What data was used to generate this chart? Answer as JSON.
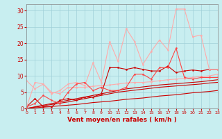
{
  "x": [
    0,
    1,
    2,
    3,
    4,
    5,
    6,
    7,
    8,
    9,
    10,
    11,
    12,
    13,
    14,
    15,
    16,
    17,
    18,
    19,
    20,
    21,
    22,
    23
  ],
  "series": [
    {
      "y": [
        0,
        0.2,
        0.4,
        0.6,
        0.8,
        1.0,
        1.2,
        1.5,
        1.8,
        2.0,
        2.2,
        2.5,
        2.8,
        3.0,
        3.2,
        3.5,
        3.8,
        4.0,
        4.2,
        4.5,
        4.8,
        5.0,
        5.2,
        5.5
      ],
      "color": "#cc0000",
      "lw": 0.8,
      "marker": null
    },
    {
      "y": [
        0,
        0.4,
        0.8,
        1.2,
        1.6,
        2.0,
        2.5,
        3.0,
        3.5,
        4.0,
        4.5,
        5.0,
        5.3,
        5.6,
        5.9,
        6.2,
        6.5,
        6.7,
        6.9,
        7.1,
        7.3,
        7.5,
        7.8,
        8.0
      ],
      "color": "#cc0000",
      "lw": 0.8,
      "marker": null
    },
    {
      "y": [
        0,
        0.5,
        1.0,
        1.5,
        2.0,
        2.5,
        3.0,
        3.5,
        4.0,
        4.5,
        5.0,
        5.5,
        6.0,
        6.3,
        6.6,
        6.9,
        7.2,
        7.4,
        7.6,
        7.8,
        8.0,
        8.2,
        8.5,
        8.8
      ],
      "color": "#cc0000",
      "lw": 0.8,
      "marker": null
    },
    {
      "y": [
        8.5,
        6.0,
        7.5,
        5.0,
        4.5,
        6.5,
        6.5,
        6.5,
        6.8,
        7.0,
        7.2,
        7.5,
        7.8,
        8.0,
        8.0,
        8.2,
        8.5,
        8.8,
        9.0,
        9.2,
        9.5,
        9.8,
        10.0,
        10.5
      ],
      "color": "#ffaaaa",
      "lw": 0.8,
      "marker": "o",
      "ms": 1.5
    },
    {
      "y": [
        0.5,
        3.0,
        0.5,
        0.5,
        2.5,
        3.0,
        2.5,
        3.5,
        3.5,
        4.5,
        12.5,
        12.5,
        12.0,
        12.5,
        12.0,
        11.5,
        11.5,
        13.0,
        11.0,
        11.5,
        11.8,
        11.5,
        12.0,
        12.0
      ],
      "color": "#cc0000",
      "lw": 0.8,
      "marker": "o",
      "ms": 1.5
    },
    {
      "y": [
        0.5,
        8.0,
        7.5,
        4.5,
        5.5,
        7.5,
        8.0,
        7.0,
        14.0,
        8.0,
        20.5,
        14.5,
        24.5,
        20.5,
        13.5,
        17.5,
        21.0,
        18.0,
        30.5,
        30.5,
        22.0,
        22.5,
        12.0,
        12.0
      ],
      "color": "#ffaaaa",
      "lw": 0.8,
      "marker": "o",
      "ms": 1.5
    },
    {
      "y": [
        0.5,
        1.5,
        4.0,
        2.5,
        1.5,
        5.0,
        7.5,
        8.0,
        5.5,
        6.5,
        5.5,
        5.5,
        6.5,
        10.5,
        10.5,
        9.0,
        12.5,
        12.5,
        18.5,
        9.5,
        9.0,
        9.5,
        9.5,
        9.5
      ],
      "color": "#ff4444",
      "lw": 0.8,
      "marker": "o",
      "ms": 1.5
    }
  ],
  "xlim": [
    0,
    23
  ],
  "ylim": [
    0,
    32
  ],
  "yticks": [
    0,
    5,
    10,
    15,
    20,
    25,
    30
  ],
  "xticks": [
    0,
    1,
    2,
    3,
    4,
    5,
    6,
    7,
    8,
    9,
    10,
    11,
    12,
    13,
    14,
    15,
    16,
    17,
    18,
    19,
    20,
    21,
    22,
    23
  ],
  "xlabel": "Vent moyen/en rafales ( km/h )",
  "bg_color": "#c8eef0",
  "grid_color": "#a0d0d8",
  "tick_color": "#cc0000",
  "label_color": "#cc0000"
}
